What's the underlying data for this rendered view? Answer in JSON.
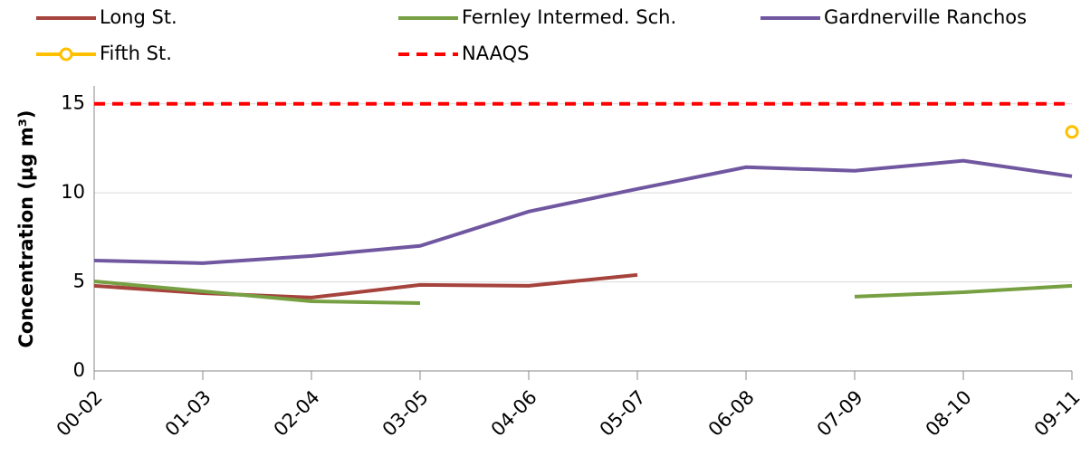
{
  "chart_data": {
    "type": "line",
    "y_label": "Concentration (µg m³)",
    "categories": [
      "00-02",
      "01-03",
      "02-04",
      "03-05",
      "04-06",
      "05-07",
      "06-08",
      "07-09",
      "08-10",
      "09-11"
    ],
    "series": [
      {
        "name": "Long St.",
        "color": "#a5433c",
        "values": [
          4.78,
          4.37,
          4.12,
          4.83,
          4.78,
          5.39,
          null,
          null,
          null,
          null
        ]
      },
      {
        "name": "Fernley Intermed. Sch.",
        "color": "#77a043",
        "values": [
          5.03,
          4.47,
          3.91,
          3.81,
          null,
          null,
          null,
          4.17,
          4.42,
          4.78
        ]
      },
      {
        "name": "Gardnerville Ranchos",
        "color": "#7057a0",
        "values": [
          6.2,
          6.05,
          6.46,
          7.02,
          8.95,
          10.22,
          11.44,
          11.24,
          11.8,
          10.93
        ]
      },
      {
        "name": "Fifth St.",
        "color": "#ffc000",
        "marker": "circle",
        "values": [
          null,
          null,
          null,
          null,
          null,
          null,
          null,
          null,
          null,
          13.42
        ]
      },
      {
        "name": "NAAQS",
        "color": "#ff0000",
        "dashed": true,
        "values": [
          15,
          15,
          15,
          15,
          15,
          15,
          15,
          15,
          15,
          15
        ]
      }
    ],
    "ylim": [
      0,
      16
    ],
    "yticks": [
      0,
      5,
      10,
      15
    ],
    "grid": true
  }
}
